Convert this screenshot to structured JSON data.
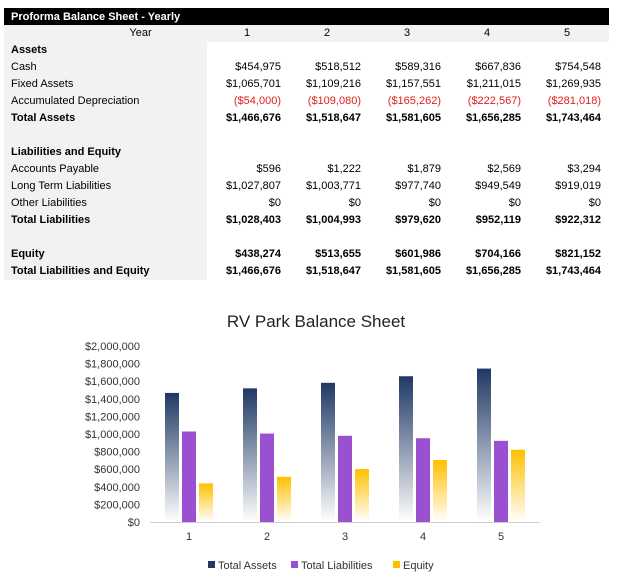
{
  "table": {
    "title": "Proforma Balance Sheet - Yearly",
    "header": {
      "label": "Year",
      "years": [
        "1",
        "2",
        "3",
        "4",
        "5"
      ]
    },
    "rows": [
      {
        "label": "Assets",
        "values": [],
        "bold": true
      },
      {
        "label": "Cash",
        "values": [
          "$454,975",
          "$518,512",
          "$589,316",
          "$667,836",
          "$754,548"
        ]
      },
      {
        "label": "Fixed Assets",
        "values": [
          "$1,065,701",
          "$1,109,216",
          "$1,157,551",
          "$1,211,015",
          "$1,269,935"
        ]
      },
      {
        "label": "Accumulated Depreciation",
        "values": [
          "($54,000)",
          "($109,080)",
          "($165,262)",
          "($222,567)",
          "($281,018)"
        ],
        "negative": true
      },
      {
        "label": "Total Assets",
        "values": [
          "$1,466,676",
          "$1,518,647",
          "$1,581,605",
          "$1,656,285",
          "$1,743,464"
        ],
        "bold": true
      },
      {
        "label": "",
        "values": []
      },
      {
        "label": "Liabilities and Equity",
        "values": [],
        "bold": true
      },
      {
        "label": "Accounts Payable",
        "values": [
          "$596",
          "$1,222",
          "$1,879",
          "$2,569",
          "$3,294"
        ]
      },
      {
        "label": "Long Term Liabilities",
        "values": [
          "$1,027,807",
          "$1,003,771",
          "$977,740",
          "$949,549",
          "$919,019"
        ]
      },
      {
        "label": "Other Liabilities",
        "values": [
          "$0",
          "$0",
          "$0",
          "$0",
          "$0"
        ]
      },
      {
        "label": "Total Liabilities",
        "values": [
          "$1,028,403",
          "$1,004,993",
          "$979,620",
          "$952,119",
          "$922,312"
        ],
        "bold": true
      },
      {
        "label": "",
        "values": []
      },
      {
        "label": "Equity",
        "values": [
          "$438,274",
          "$513,655",
          "$601,986",
          "$704,166",
          "$821,152"
        ],
        "bold": true
      },
      {
        "label": "Total Liabilities and Equity",
        "values": [
          "$1,466,676",
          "$1,518,647",
          "$1,581,605",
          "$1,656,285",
          "$1,743,464"
        ],
        "bold": true
      }
    ]
  },
  "chart_data": {
    "type": "bar",
    "title": "RV Park Balance Sheet",
    "categories": [
      "1",
      "2",
      "3",
      "4",
      "5"
    ],
    "ylim": [
      0,
      2000000
    ],
    "yticks": [
      "$0",
      "$200,000",
      "$400,000",
      "$600,000",
      "$800,000",
      "$1,000,000",
      "$1,200,000",
      "$1,400,000",
      "$1,600,000",
      "$1,800,000",
      "$2,000,000"
    ],
    "legend_position": "bottom",
    "grid": false,
    "series": [
      {
        "name": "Total Assets",
        "values": [
          1466676,
          1518647,
          1581605,
          1656285,
          1743464
        ],
        "color": "#1f3864"
      },
      {
        "name": "Total Liabilities",
        "values": [
          1028403,
          1004993,
          979620,
          952119,
          922312
        ],
        "color": "#9b4fd1"
      },
      {
        "name": "Equity",
        "values": [
          438274,
          513655,
          601986,
          704166,
          821152
        ],
        "color": "#ffc000"
      }
    ]
  }
}
